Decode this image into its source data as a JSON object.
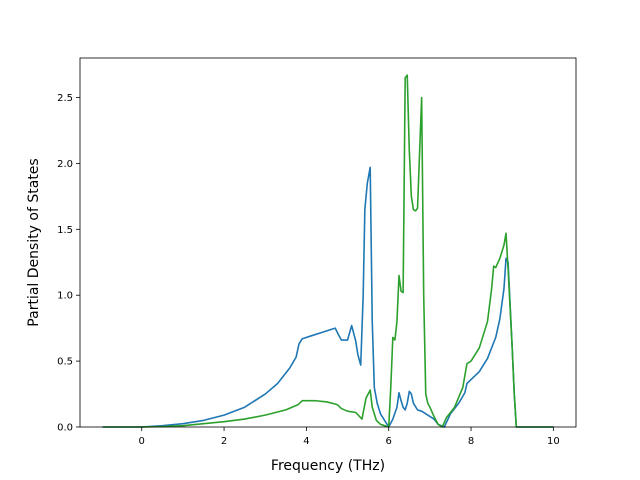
{
  "chart_data": {
    "type": "line",
    "title": "",
    "xlabel": "Frequency (THz)",
    "ylabel": "Partial Density of States",
    "xlim": [
      -1.5,
      10.55
    ],
    "ylim": [
      0.0,
      2.8
    ],
    "xticks": [
      0,
      2,
      4,
      6,
      8,
      10
    ],
    "xtick_labels": [
      "0",
      "2",
      "4",
      "6",
      "8",
      "10"
    ],
    "yticks": [
      0.0,
      0.5,
      1.0,
      1.5,
      2.0,
      2.5
    ],
    "ytick_labels": [
      "0.0",
      "0.5",
      "1.0",
      "1.5",
      "2.0",
      "2.5"
    ],
    "grid": false,
    "legend": "none",
    "series": [
      {
        "color": "#1f77b4",
        "x": [
          -0.95,
          0.0,
          0.5,
          1.0,
          1.5,
          2.0,
          2.5,
          3.0,
          3.3,
          3.6,
          3.75,
          3.82,
          3.9,
          4.1,
          4.4,
          4.7,
          4.78,
          4.85,
          5.0,
          5.1,
          5.2,
          5.25,
          5.32,
          5.38,
          5.42,
          5.48,
          5.55,
          5.6,
          5.65,
          5.72,
          5.8,
          5.9,
          6.0,
          6.1,
          6.2,
          6.25,
          6.3,
          6.35,
          6.4,
          6.45,
          6.5,
          6.55,
          6.6,
          6.7,
          6.8,
          6.9,
          7.0,
          7.1,
          7.2,
          7.35,
          7.5,
          7.7,
          7.85,
          7.9,
          8.2,
          8.4,
          8.6,
          8.7,
          8.8,
          8.85,
          8.9,
          9.0,
          9.05,
          9.1,
          10.0
        ],
        "y": [
          0.0,
          0.0,
          0.01,
          0.025,
          0.05,
          0.09,
          0.15,
          0.25,
          0.33,
          0.45,
          0.53,
          0.63,
          0.67,
          0.69,
          0.72,
          0.75,
          0.7,
          0.66,
          0.66,
          0.77,
          0.65,
          0.55,
          0.47,
          1.0,
          1.65,
          1.85,
          1.97,
          0.8,
          0.3,
          0.18,
          0.1,
          0.05,
          0.0,
          0.06,
          0.15,
          0.26,
          0.2,
          0.15,
          0.13,
          0.18,
          0.27,
          0.25,
          0.18,
          0.13,
          0.12,
          0.1,
          0.08,
          0.06,
          0.02,
          0.0,
          0.1,
          0.18,
          0.26,
          0.33,
          0.42,
          0.52,
          0.68,
          0.82,
          1.05,
          1.28,
          1.25,
          0.6,
          0.25,
          0.0,
          0.0
        ]
      },
      {
        "color": "#2ca02c",
        "x": [
          -0.95,
          0.0,
          0.5,
          1.0,
          1.5,
          2.0,
          2.5,
          3.0,
          3.5,
          3.8,
          3.9,
          4.2,
          4.5,
          4.75,
          4.85,
          5.0,
          5.2,
          5.35,
          5.45,
          5.55,
          5.6,
          5.7,
          5.8,
          5.9,
          6.0,
          6.05,
          6.1,
          6.15,
          6.2,
          6.25,
          6.3,
          6.35,
          6.4,
          6.45,
          6.5,
          6.55,
          6.6,
          6.65,
          6.7,
          6.8,
          6.85,
          6.9,
          6.95,
          7.0,
          7.1,
          7.2,
          7.3,
          7.4,
          7.6,
          7.8,
          7.9,
          8.0,
          8.2,
          8.4,
          8.5,
          8.55,
          8.6,
          8.7,
          8.8,
          8.85,
          8.9,
          9.0,
          9.05,
          9.1,
          10.0
        ],
        "y": [
          0.0,
          0.0,
          0.003,
          0.01,
          0.025,
          0.04,
          0.06,
          0.09,
          0.13,
          0.17,
          0.2,
          0.2,
          0.19,
          0.17,
          0.14,
          0.12,
          0.11,
          0.06,
          0.22,
          0.28,
          0.15,
          0.05,
          0.02,
          0.01,
          0.0,
          0.3,
          0.68,
          0.66,
          0.8,
          1.15,
          1.03,
          1.02,
          2.65,
          2.67,
          2.1,
          1.75,
          1.65,
          1.64,
          1.66,
          2.5,
          1.0,
          0.25,
          0.18,
          0.15,
          0.08,
          0.02,
          0.0,
          0.07,
          0.15,
          0.3,
          0.48,
          0.5,
          0.6,
          0.8,
          1.05,
          1.22,
          1.21,
          1.28,
          1.38,
          1.47,
          1.2,
          0.6,
          0.25,
          0.0,
          0.0
        ]
      }
    ]
  }
}
